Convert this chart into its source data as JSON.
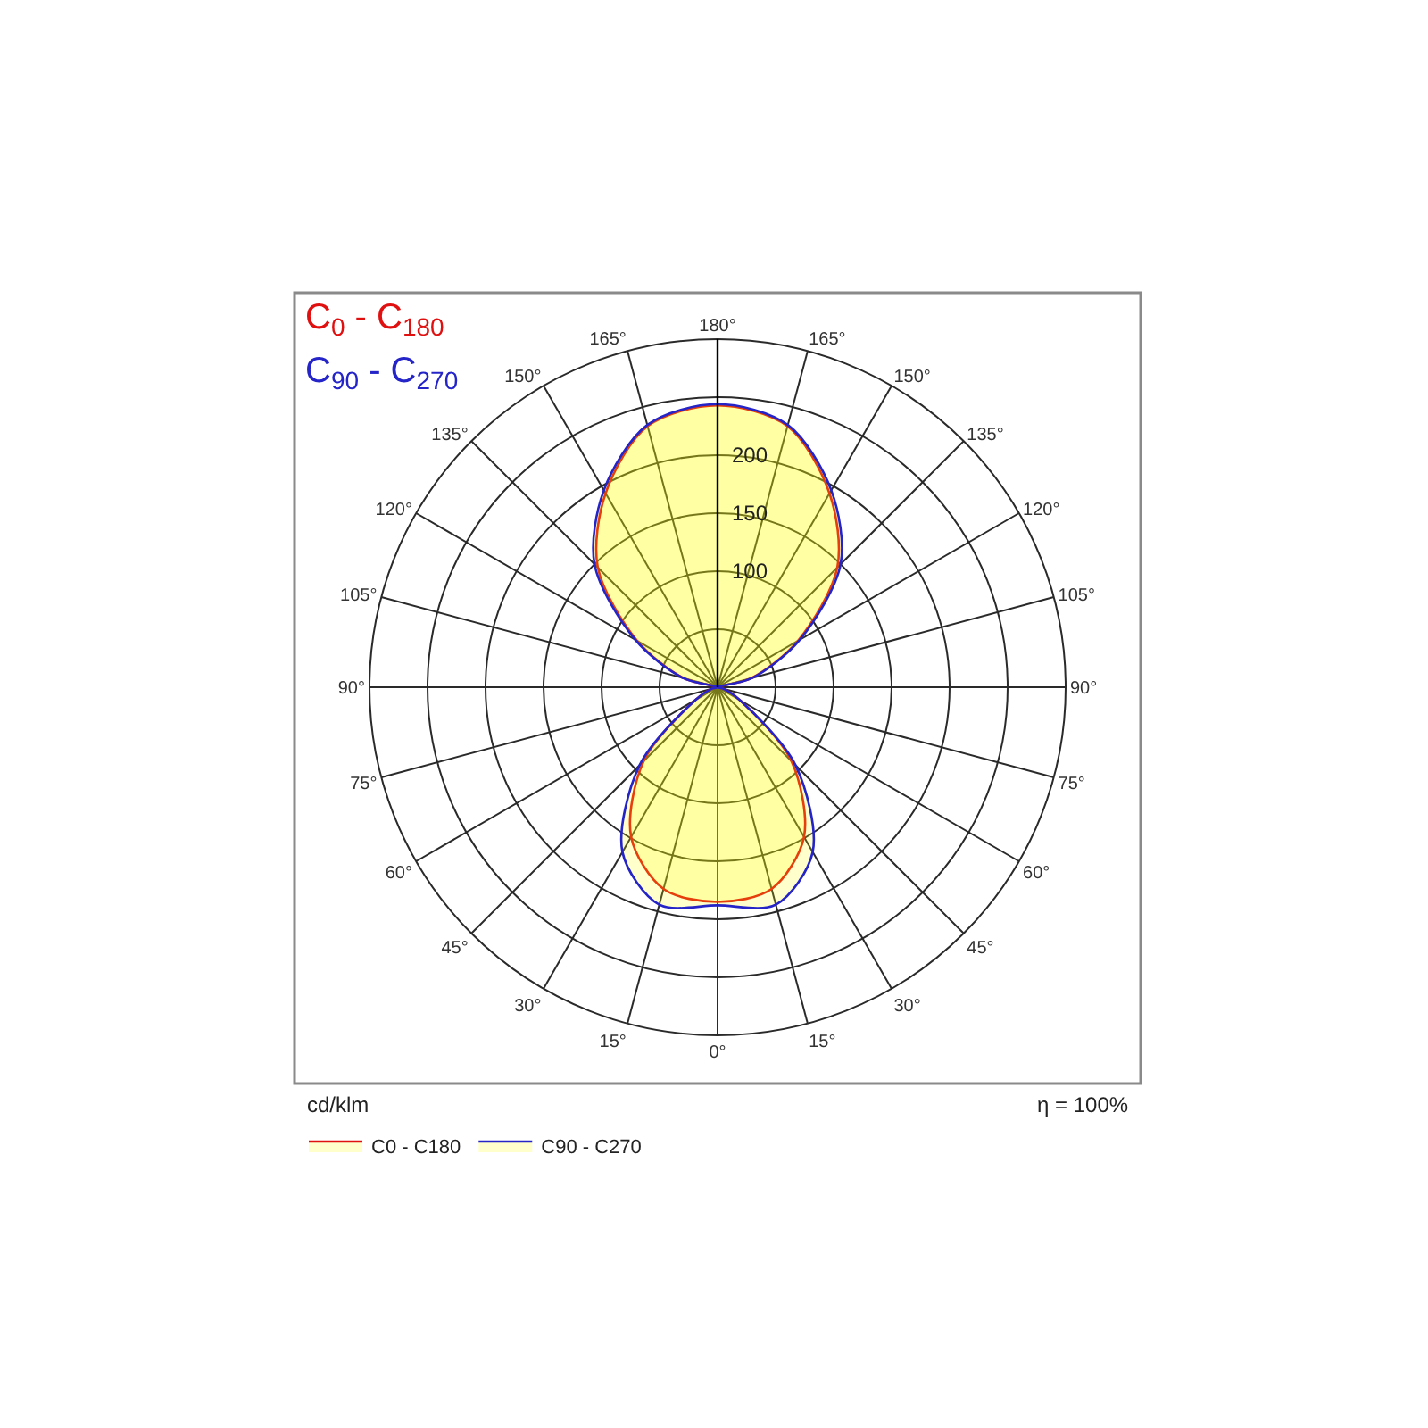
{
  "chart_data": {
    "type": "radar",
    "categories": [
      "180°",
      "165°",
      "150°",
      "135°",
      "120°",
      "105°",
      "90°",
      "75°",
      "60°",
      "45°",
      "30°",
      "15°",
      "0°",
      "15°",
      "30°",
      "45°",
      "60°",
      "75°",
      "90°",
      "105°",
      "120°",
      "135°",
      "150°",
      "165°"
    ],
    "series": [
      {
        "name": "C0 - C180",
        "color": "#e01010",
        "values": [
          243,
          233,
          193,
          146,
          80,
          30,
          0,
          5,
          22,
          90,
          149,
          180,
          185,
          180,
          149,
          90,
          22,
          5,
          0,
          30,
          80,
          146,
          193,
          233
        ]
      },
      {
        "name": "C90 - C270",
        "color": "#2424c8",
        "values": [
          244,
          234,
          196,
          150,
          82,
          31,
          0,
          5,
          22,
          95,
          164,
          194,
          188,
          194,
          164,
          95,
          22,
          5,
          0,
          31,
          82,
          150,
          196,
          234
        ]
      }
    ],
    "ylim": [
      0,
      300
    ],
    "yticks": [
      100,
      150,
      200
    ],
    "ylabel": "cd/klm",
    "annotations": [
      "C$_{0}$ - C$_{180}$",
      "C$_{90}$ - C$_{270}$",
      "η = 100%"
    ],
    "legend": "bottom left",
    "grid": true,
    "marker": "none",
    "line_style": "solid"
  }
}
